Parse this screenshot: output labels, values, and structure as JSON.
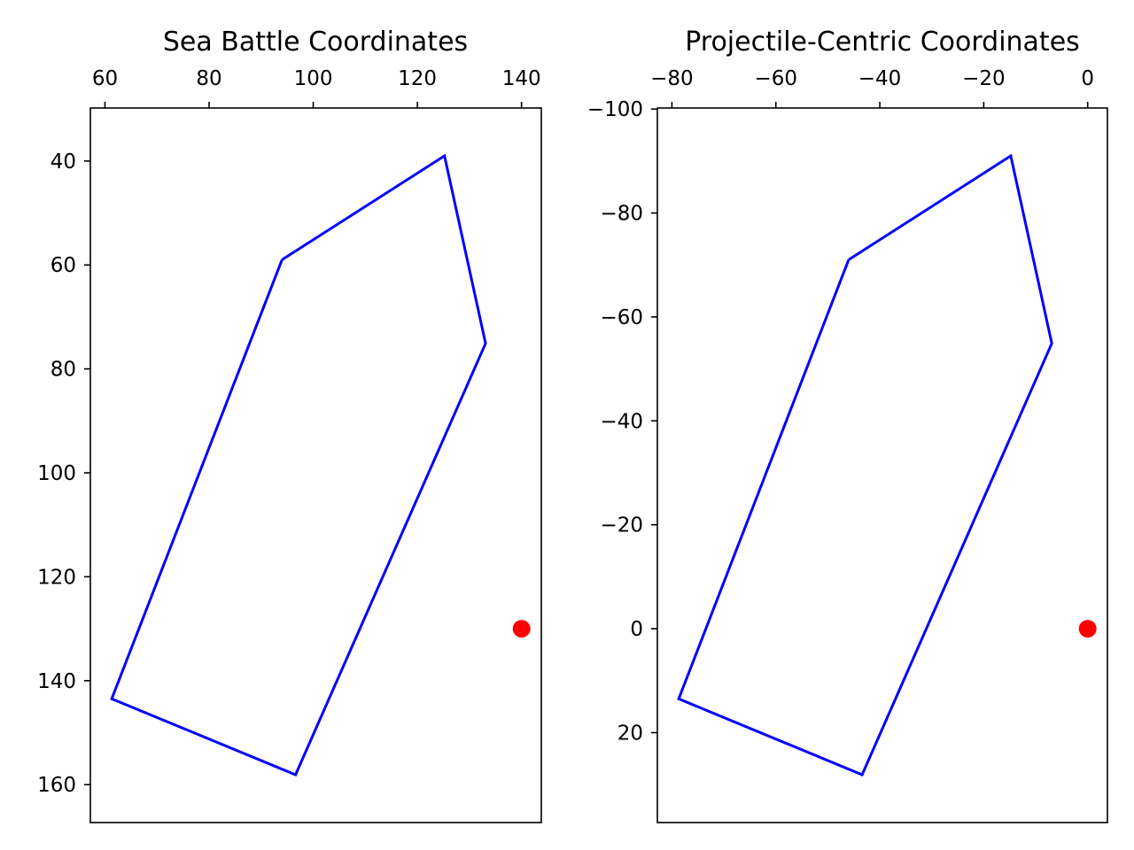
{
  "figure": {
    "background": "#ffffff"
  },
  "chart_data": [
    {
      "type": "line",
      "title": "Sea Battle Coordinates",
      "xlabel": "",
      "ylabel": "",
      "xaxis_position": "top",
      "yaxis_inverted": true,
      "grid": false,
      "xlim": [
        57.2,
        143.8
      ],
      "ylim": [
        29.8,
        167.3
      ],
      "xticks": [
        60,
        80,
        100,
        120,
        140
      ],
      "yticks": [
        40,
        60,
        80,
        100,
        120,
        140,
        160
      ],
      "series": [
        {
          "kind": "polygon",
          "color": "#0000ff",
          "x": [
            94.0,
            125.2,
            133.1,
            96.6,
            61.3,
            94.0
          ],
          "y": [
            59.0,
            39.0,
            75.1,
            158.1,
            143.5,
            59.0
          ]
        },
        {
          "kind": "point",
          "color": "#ff0000",
          "x": [
            140.0
          ],
          "y": [
            130.0
          ]
        }
      ]
    },
    {
      "type": "line",
      "title": "Projectile-Centric Coordinates",
      "xlabel": "",
      "ylabel": "",
      "xaxis_position": "top",
      "yaxis_inverted": true,
      "grid": false,
      "xlim": [
        -82.8,
        3.8
      ],
      "ylim": [
        -100.2,
        37.3
      ],
      "xticks": [
        -80,
        -60,
        -40,
        -20,
        0
      ],
      "yticks": [
        -100,
        -80,
        -60,
        -40,
        -20,
        0,
        20
      ],
      "series": [
        {
          "kind": "polygon",
          "color": "#0000ff",
          "x": [
            -46.0,
            -14.8,
            -6.9,
            -43.4,
            -78.7,
            -46.0
          ],
          "y": [
            -71.0,
            -91.0,
            -54.9,
            28.1,
            13.5,
            -71.0
          ]
        },
        {
          "kind": "point",
          "color": "#ff0000",
          "x": [
            0.0
          ],
          "y": [
            0.0
          ]
        }
      ]
    }
  ]
}
